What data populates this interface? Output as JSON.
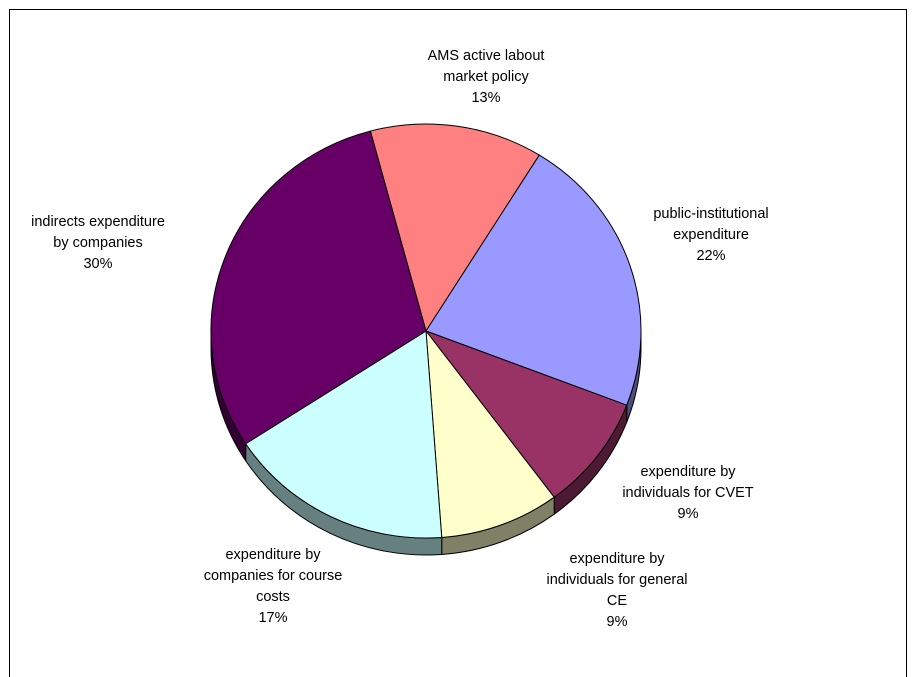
{
  "chart_data": {
    "type": "pie",
    "title": "",
    "slices": [
      {
        "label_lines": [
          "AMS active labout",
          "market policy"
        ],
        "percent_label": "13%",
        "value": 13,
        "color": "#FF8080"
      },
      {
        "label_lines": [
          "public-institutional",
          "expenditure"
        ],
        "percent_label": "22%",
        "value": 22,
        "color": "#9999FF"
      },
      {
        "label_lines": [
          "expenditure by",
          "individuals for CVET"
        ],
        "percent_label": "9%",
        "value": 9,
        "color": "#993366"
      },
      {
        "label_lines": [
          "expenditure by",
          "individuals for general",
          "CE"
        ],
        "percent_label": "9%",
        "value": 9,
        "color": "#FFFFCC"
      },
      {
        "label_lines": [
          "expenditure by",
          "companies for course",
          "costs"
        ],
        "percent_label": "17%",
        "value": 17,
        "color": "#CCFFFF"
      },
      {
        "label_lines": [
          "indirects expenditure",
          "by companies"
        ],
        "percent_label": "30%",
        "value": 30,
        "color": "#660066"
      }
    ],
    "legend": "none",
    "data_labels": "outside, category name and percentage"
  }
}
